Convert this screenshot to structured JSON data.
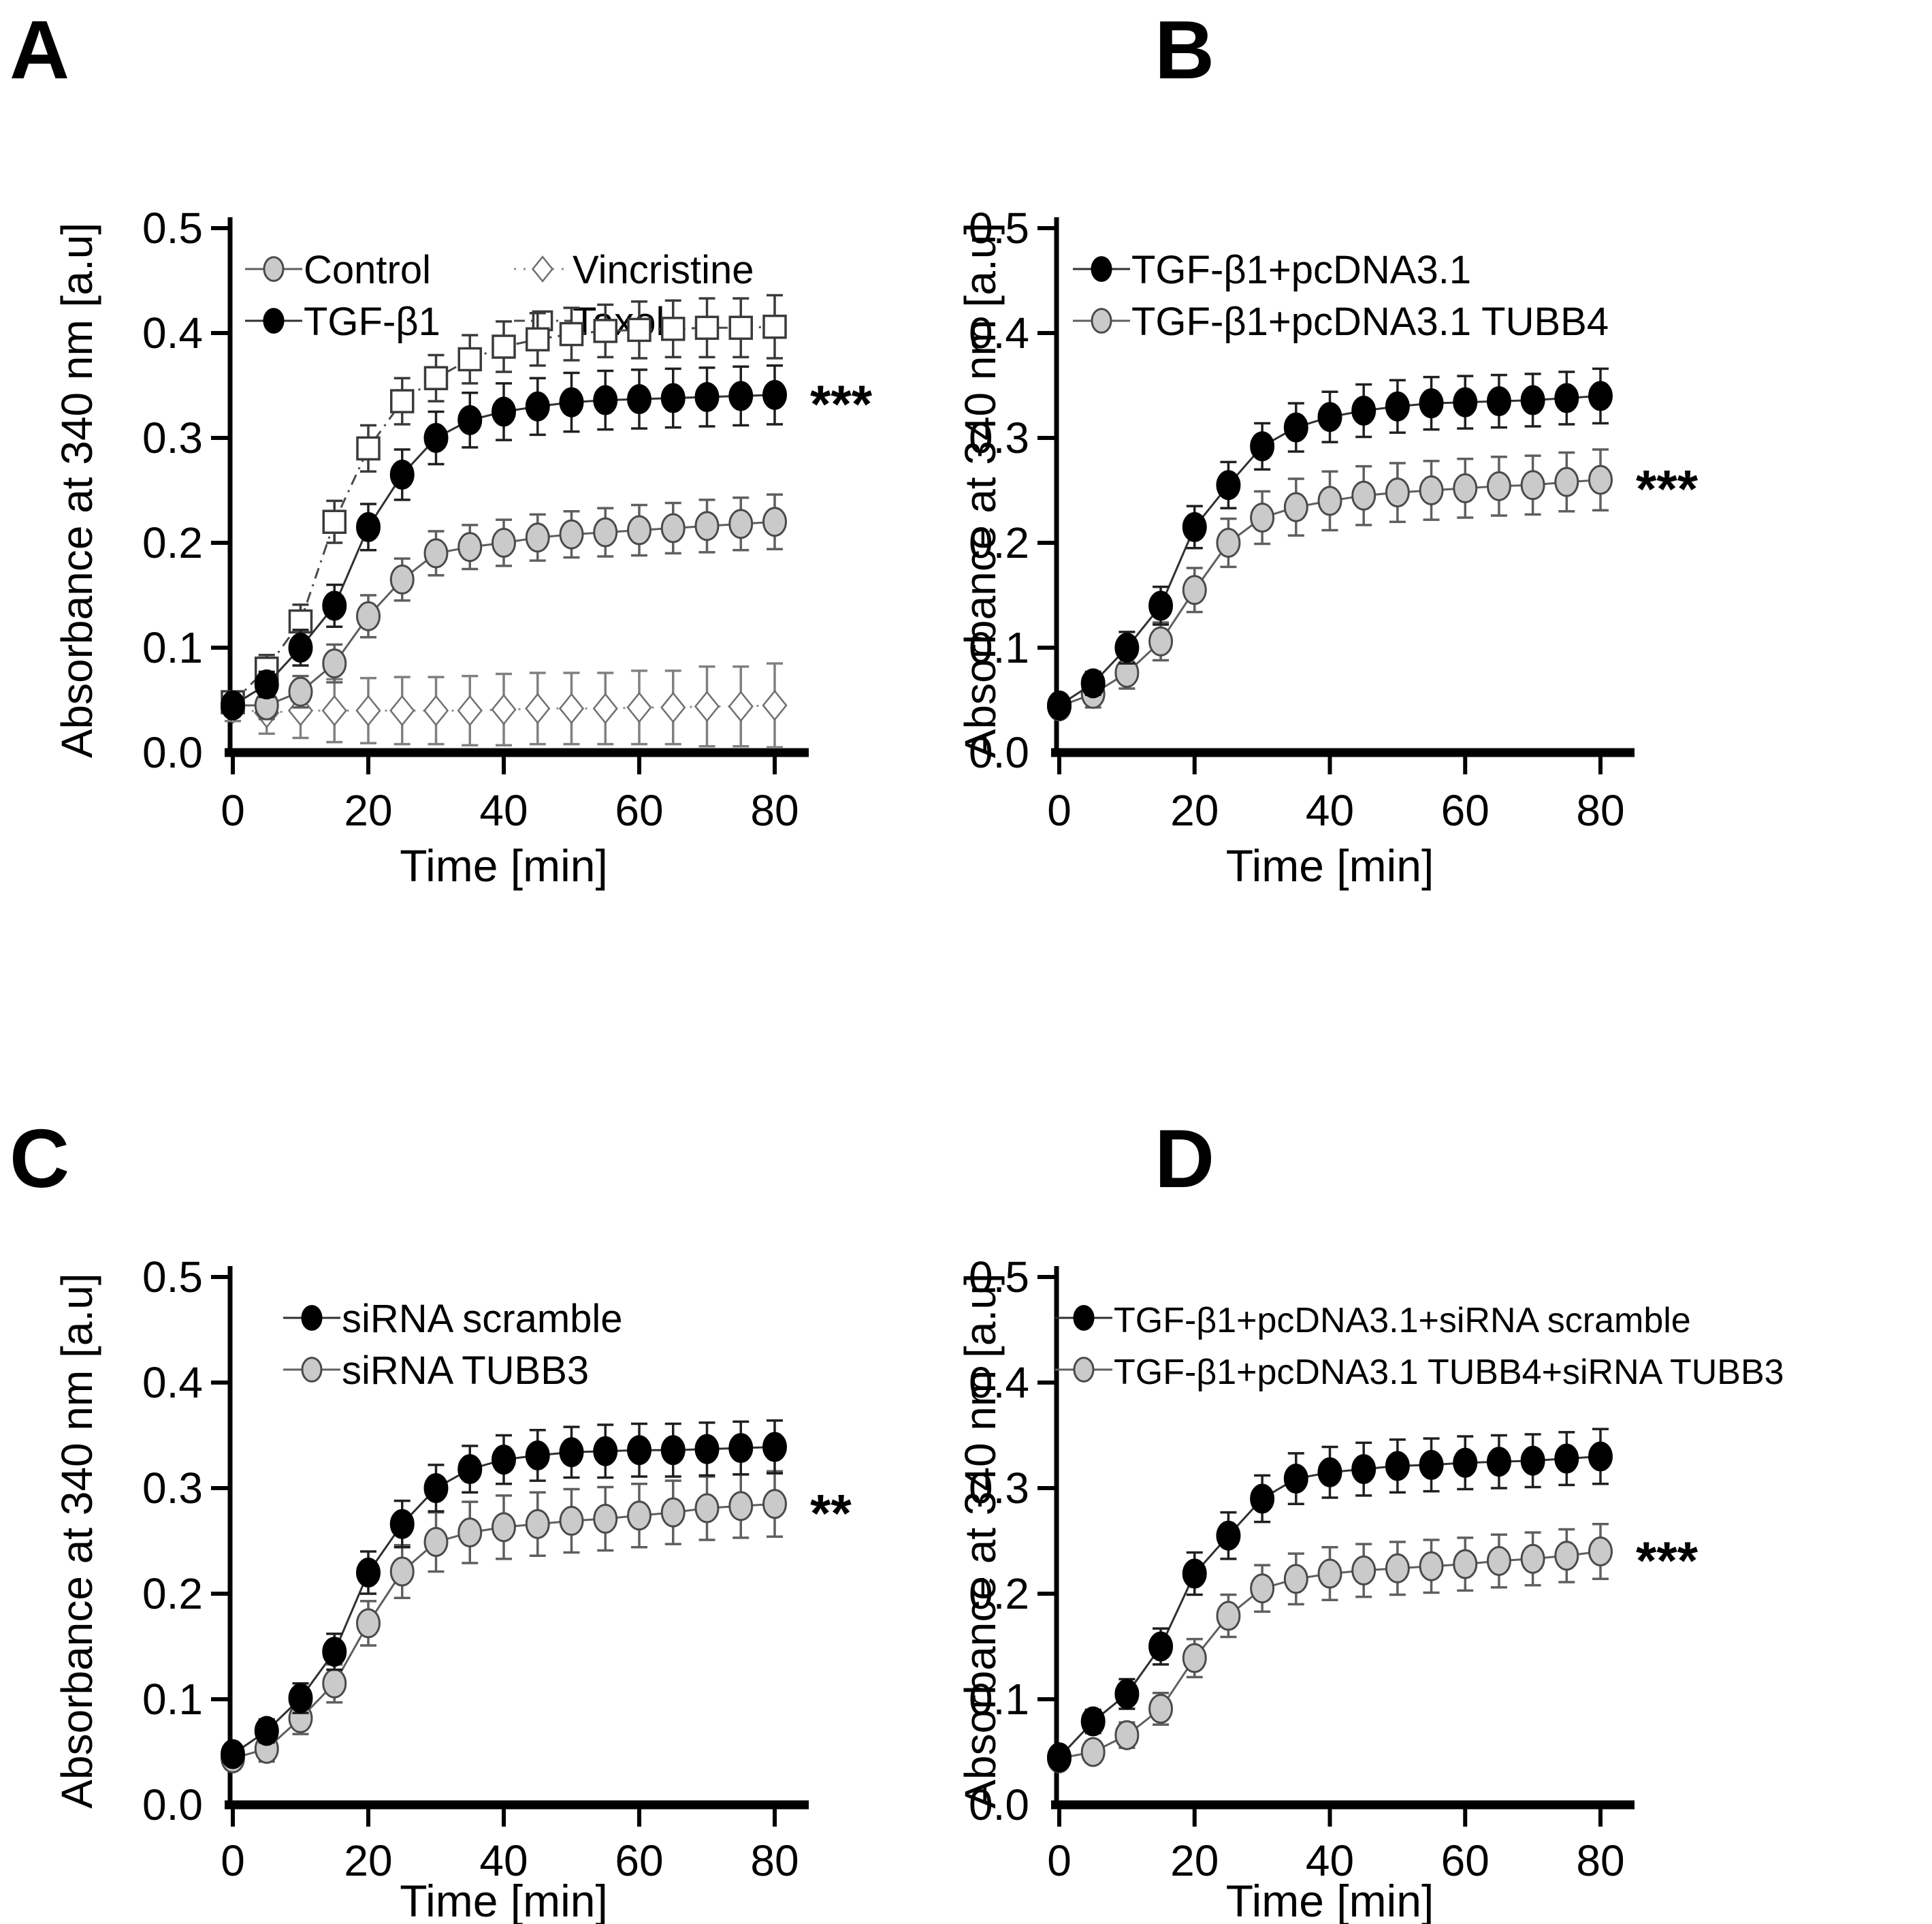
{
  "page": {
    "background": "#ffffff"
  },
  "chart_data": [
    {
      "panel_label": "A",
      "type": "line",
      "xlabel": "Time [min]",
      "ylabel": "Absorbance at 340 nm [a.u]",
      "x": [
        0,
        5,
        10,
        15,
        20,
        25,
        30,
        35,
        40,
        45,
        50,
        55,
        60,
        65,
        70,
        75,
        80
      ],
      "x_ticks": [
        0,
        20,
        40,
        60,
        80
      ],
      "y_ticks": [
        "0.0",
        "0.1",
        "0.2",
        "0.3",
        "0.4",
        "0.5"
      ],
      "xlim": [
        0,
        80
      ],
      "ylim": [
        0,
        0.5
      ],
      "grid": false,
      "legend_position": "top-inside-two-columns",
      "significance": {
        "text": "***",
        "series_index": 1
      },
      "series": [
        {
          "label": "Control",
          "marker": "circle",
          "marker_fill": "#cacaca",
          "marker_stroke": "#4a4a4a",
          "line_style": "solid",
          "line_color": "#5f5f5f",
          "err_color": "#5f5f5f",
          "y": [
            0.045,
            0.045,
            0.058,
            0.085,
            0.13,
            0.165,
            0.19,
            0.196,
            0.2,
            0.205,
            0.208,
            0.21,
            0.212,
            0.214,
            0.216,
            0.218,
            0.22
          ],
          "err": [
            0.01,
            0.013,
            0.015,
            0.018,
            0.02,
            0.02,
            0.021,
            0.021,
            0.022,
            0.022,
            0.022,
            0.023,
            0.024,
            0.024,
            0.025,
            0.025,
            0.026
          ]
        },
        {
          "label": "TGF-β1",
          "marker": "circle",
          "marker_fill": "#000000",
          "marker_stroke": "#000000",
          "line_style": "solid",
          "line_color": "#303030",
          "err_color": "#1f1f1f",
          "y": [
            0.045,
            0.065,
            0.1,
            0.14,
            0.215,
            0.265,
            0.3,
            0.317,
            0.325,
            0.33,
            0.334,
            0.336,
            0.337,
            0.338,
            0.339,
            0.34,
            0.341
          ],
          "err": [
            0.008,
            0.012,
            0.017,
            0.02,
            0.022,
            0.024,
            0.025,
            0.026,
            0.027,
            0.027,
            0.028,
            0.028,
            0.028,
            0.028,
            0.028,
            0.028,
            0.028
          ]
        },
        {
          "label": "Vincristine",
          "marker": "diamond",
          "marker_fill": "#ffffff",
          "marker_stroke": "#6f6f6f",
          "line_style": "dotted",
          "line_color": "#909090",
          "err_color": "#808080",
          "y": [
            0.042,
            0.038,
            0.04,
            0.04,
            0.04,
            0.04,
            0.04,
            0.04,
            0.041,
            0.042,
            0.042,
            0.042,
            0.043,
            0.043,
            0.044,
            0.044,
            0.045
          ],
          "err": [
            0.012,
            0.02,
            0.026,
            0.03,
            0.031,
            0.032,
            0.032,
            0.033,
            0.034,
            0.034,
            0.034,
            0.034,
            0.035,
            0.035,
            0.038,
            0.038,
            0.04
          ]
        },
        {
          "label": "Taxol",
          "marker": "square",
          "marker_fill": "#ffffff",
          "marker_stroke": "#3a3a3a",
          "line_style": "dashdot",
          "line_color": "#4a4a4a",
          "err_color": "#3a3a3a",
          "y": [
            0.048,
            0.08,
            0.125,
            0.22,
            0.29,
            0.335,
            0.357,
            0.375,
            0.387,
            0.394,
            0.399,
            0.402,
            0.403,
            0.404,
            0.405,
            0.405,
            0.406
          ],
          "err": [
            0.008,
            0.013,
            0.016,
            0.02,
            0.022,
            0.022,
            0.022,
            0.023,
            0.024,
            0.025,
            0.025,
            0.025,
            0.027,
            0.027,
            0.028,
            0.028,
            0.03
          ]
        }
      ]
    },
    {
      "panel_label": "B",
      "type": "line",
      "xlabel": "Time [min]",
      "ylabel": "Absorbance at 340 nm [a.u]",
      "x": [
        0,
        5,
        10,
        15,
        20,
        25,
        30,
        35,
        40,
        45,
        50,
        55,
        60,
        65,
        70,
        75,
        80
      ],
      "x_ticks": [
        0,
        20,
        40,
        60,
        80
      ],
      "y_ticks": [
        "0.0",
        "0.1",
        "0.2",
        "0.3",
        "0.4",
        "0.5"
      ],
      "xlim": [
        0,
        80
      ],
      "ylim": [
        0,
        0.5
      ],
      "grid": false,
      "legend_position": "top-inside",
      "significance": {
        "text": "***",
        "series_index": 1
      },
      "series": [
        {
          "label": "TGF-β1+pcDNA3.1",
          "marker": "circle",
          "marker_fill": "#000000",
          "marker_stroke": "#000000",
          "line_style": "solid",
          "line_color": "#303030",
          "err_color": "#1f1f1f",
          "y": [
            0.045,
            0.066,
            0.1,
            0.14,
            0.215,
            0.255,
            0.292,
            0.31,
            0.32,
            0.326,
            0.33,
            0.333,
            0.334,
            0.335,
            0.336,
            0.338,
            0.34
          ],
          "err": [
            0.007,
            0.011,
            0.015,
            0.018,
            0.02,
            0.022,
            0.022,
            0.023,
            0.024,
            0.025,
            0.025,
            0.025,
            0.025,
            0.025,
            0.025,
            0.025,
            0.026
          ]
        },
        {
          "label": "TGF-β1+pcDNA3.1 TUBB4",
          "marker": "circle",
          "marker_fill": "#cacaca",
          "marker_stroke": "#4a4a4a",
          "line_style": "solid",
          "line_color": "#5f5f5f",
          "err_color": "#5f5f5f",
          "y": [
            0.044,
            0.056,
            0.076,
            0.106,
            0.155,
            0.2,
            0.224,
            0.234,
            0.24,
            0.245,
            0.248,
            0.25,
            0.252,
            0.254,
            0.255,
            0.258,
            0.26
          ],
          "err": [
            0.01,
            0.013,
            0.015,
            0.018,
            0.021,
            0.023,
            0.025,
            0.027,
            0.028,
            0.028,
            0.028,
            0.028,
            0.028,
            0.028,
            0.028,
            0.028,
            0.029
          ]
        }
      ]
    },
    {
      "panel_label": "C",
      "type": "line",
      "xlabel": "Time [min]",
      "ylabel": "Absorbance at 340 nm [a.u]",
      "x": [
        0,
        5,
        10,
        15,
        20,
        25,
        30,
        35,
        40,
        45,
        50,
        55,
        60,
        65,
        70,
        75,
        80
      ],
      "x_ticks": [
        0,
        20,
        40,
        60,
        80
      ],
      "y_ticks": [
        "0.0",
        "0.1",
        "0.2",
        "0.3",
        "0.4",
        "0.5"
      ],
      "xlim": [
        0,
        80
      ],
      "ylim": [
        0,
        0.5
      ],
      "grid": false,
      "legend_position": "top-inside",
      "significance": {
        "text": "**",
        "series_index": 1
      },
      "series": [
        {
          "label": "siRNA scramble",
          "marker": "circle",
          "marker_fill": "#000000",
          "marker_stroke": "#000000",
          "line_style": "solid",
          "line_color": "#303030",
          "err_color": "#1f1f1f",
          "y": [
            0.048,
            0.07,
            0.101,
            0.145,
            0.22,
            0.266,
            0.3,
            0.318,
            0.327,
            0.331,
            0.334,
            0.335,
            0.336,
            0.336,
            0.337,
            0.338,
            0.339
          ],
          "err": [
            0.007,
            0.011,
            0.014,
            0.017,
            0.02,
            0.022,
            0.022,
            0.022,
            0.023,
            0.024,
            0.024,
            0.025,
            0.025,
            0.025,
            0.025,
            0.025,
            0.025
          ]
        },
        {
          "label": "siRNA TUBB3",
          "marker": "circle",
          "marker_fill": "#cacaca",
          "marker_stroke": "#4a4a4a",
          "line_style": "solid",
          "line_color": "#5f5f5f",
          "err_color": "#5f5f5f",
          "y": [
            0.044,
            0.053,
            0.082,
            0.115,
            0.172,
            0.221,
            0.249,
            0.258,
            0.263,
            0.266,
            0.269,
            0.271,
            0.274,
            0.277,
            0.281,
            0.283,
            0.285
          ],
          "err": [
            0.01,
            0.012,
            0.015,
            0.018,
            0.021,
            0.025,
            0.028,
            0.029,
            0.03,
            0.03,
            0.03,
            0.03,
            0.03,
            0.03,
            0.03,
            0.03,
            0.031
          ]
        }
      ]
    },
    {
      "panel_label": "D",
      "type": "line",
      "xlabel": "Time [min]",
      "ylabel": "Absorbance at 340 nm [a.u]",
      "x": [
        0,
        5,
        10,
        15,
        20,
        25,
        30,
        35,
        40,
        45,
        50,
        55,
        60,
        65,
        70,
        75,
        80
      ],
      "x_ticks": [
        0,
        20,
        40,
        60,
        80
      ],
      "y_ticks": [
        "0.0",
        "0.1",
        "0.2",
        "0.3",
        "0.4",
        "0.5"
      ],
      "xlim": [
        0,
        80
      ],
      "ylim": [
        0,
        0.5
      ],
      "grid": false,
      "legend_position": "top-inside",
      "significance": {
        "text": "***",
        "series_index": 1
      },
      "series": [
        {
          "label": "TGF-β1+pcDNA3.1+siRNA scramble",
          "marker": "circle",
          "marker_fill": "#000000",
          "marker_stroke": "#000000",
          "line_style": "solid",
          "line_color": "#303030",
          "err_color": "#1f1f1f",
          "y": [
            0.045,
            0.079,
            0.105,
            0.15,
            0.219,
            0.255,
            0.29,
            0.309,
            0.315,
            0.318,
            0.321,
            0.322,
            0.324,
            0.325,
            0.326,
            0.328,
            0.33
          ],
          "err": [
            0.007,
            0.011,
            0.014,
            0.017,
            0.02,
            0.022,
            0.022,
            0.024,
            0.024,
            0.025,
            0.025,
            0.025,
            0.025,
            0.025,
            0.025,
            0.025,
            0.026
          ]
        },
        {
          "label": "TGF-β1+pcDNA3.1 TUBB4+siRNA TUBB3",
          "marker": "circle",
          "marker_fill": "#cacaca",
          "marker_stroke": "#4a4a4a",
          "line_style": "solid",
          "line_color": "#5f5f5f",
          "err_color": "#5f5f5f",
          "y": [
            0.044,
            0.05,
            0.066,
            0.091,
            0.139,
            0.179,
            0.205,
            0.214,
            0.219,
            0.222,
            0.224,
            0.226,
            0.228,
            0.231,
            0.233,
            0.236,
            0.24
          ],
          "err": [
            0.008,
            0.01,
            0.012,
            0.015,
            0.018,
            0.02,
            0.022,
            0.024,
            0.025,
            0.025,
            0.025,
            0.025,
            0.025,
            0.025,
            0.025,
            0.025,
            0.026
          ]
        }
      ]
    }
  ]
}
